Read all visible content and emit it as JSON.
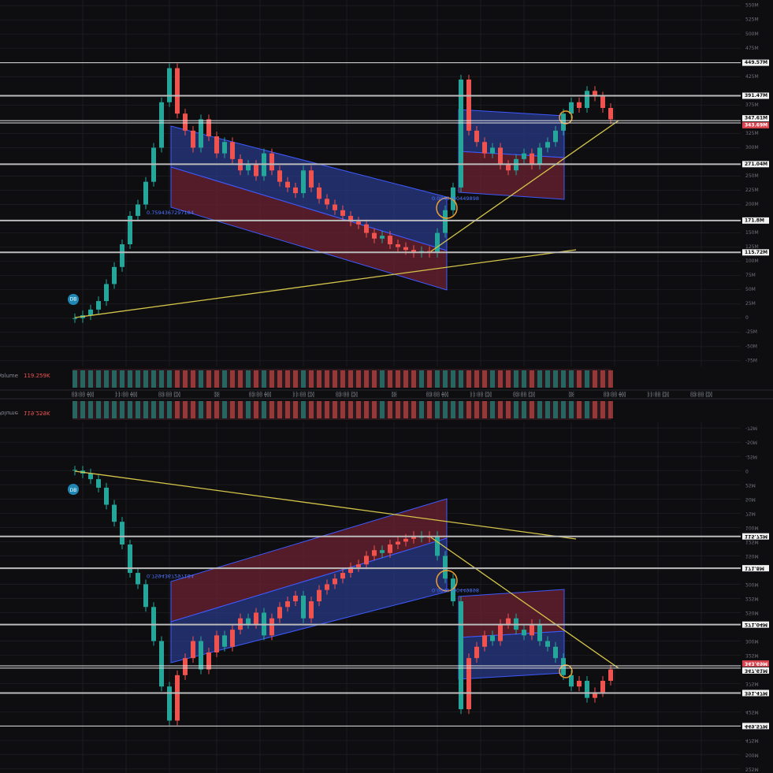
{
  "chart_data": {
    "type": "candlestick",
    "volume_label": "Volume",
    "volume_value": "119.259K",
    "closes": [
      0,
      5,
      15,
      30,
      60,
      90,
      130,
      180,
      200,
      240,
      300,
      380,
      440,
      360,
      330,
      300,
      350,
      320,
      290,
      310,
      280,
      260,
      270,
      250,
      290,
      260,
      240,
      230,
      220,
      260,
      230,
      210,
      200,
      190,
      180,
      170,
      165,
      150,
      140,
      145,
      130,
      125,
      120,
      115,
      118,
      115,
      150,
      190,
      230,
      420,
      330,
      310,
      290,
      300,
      270,
      260,
      280,
      290,
      270,
      300,
      310,
      330,
      360,
      380,
      370,
      400,
      390,
      370,
      350
    ],
    "xlim": [
      -9.5,
      84.5
    ],
    "xticks": [
      {
        "value": 1,
        "label": "09:00 AM"
      },
      {
        "value": 6.5,
        "label": "11:00 AM"
      },
      {
        "value": 12,
        "label": "09:00 PM"
      },
      {
        "value": 18,
        "label": "3K"
      },
      {
        "value": 23.5,
        "label": "09:00 AM"
      },
      {
        "value": 29,
        "label": "11:00 PM"
      },
      {
        "value": 34.5,
        "label": "09:00 PM"
      },
      {
        "value": 40.5,
        "label": "3K"
      },
      {
        "value": 46,
        "label": "09:00 AM"
      },
      {
        "value": 51.5,
        "label": "11:00 PM"
      },
      {
        "value": 57,
        "label": "09:00 PM"
      },
      {
        "value": 63,
        "label": "3K"
      },
      {
        "value": 68.5,
        "label": "09:00 AM"
      },
      {
        "value": 74,
        "label": "11:00 PM"
      },
      {
        "value": 79.5,
        "label": "09:00 PM"
      }
    ],
    "ylim": [
      -85,
      560
    ],
    "yticks": [
      {
        "value": 550,
        "label": "550M"
      },
      {
        "value": 525,
        "label": "525M"
      },
      {
        "value": 500,
        "label": "500M"
      },
      {
        "value": 475,
        "label": "475M"
      },
      {
        "value": 425,
        "label": "425M"
      },
      {
        "value": 375,
        "label": "375M"
      },
      {
        "value": 325,
        "label": "325M"
      },
      {
        "value": 300,
        "label": "300M"
      },
      {
        "value": 250,
        "label": "250M"
      },
      {
        "value": 225,
        "label": "225M"
      },
      {
        "value": 200,
        "label": "200M"
      },
      {
        "value": 150,
        "label": "150M"
      },
      {
        "value": 125,
        "label": "125M"
      },
      {
        "value": 100,
        "label": "100M"
      },
      {
        "value": 75,
        "label": "75M"
      },
      {
        "value": 50,
        "label": "50M"
      },
      {
        "value": 25,
        "label": "25M"
      },
      0,
      {
        "value": -25,
        "label": "-25M"
      },
      {
        "value": -50,
        "label": "-50M"
      },
      {
        "value": -75,
        "label": "-75M"
      }
    ],
    "levels": [
      {
        "value": 449.57,
        "label": "449.57M"
      },
      {
        "value": 391.47,
        "label": "391.47M"
      },
      {
        "value": 347.61,
        "label": "347.61M"
      },
      {
        "value": 343.69,
        "label": "343.69M"
      },
      {
        "value": 271.04,
        "label": "271.04M"
      },
      {
        "value": 171.8,
        "label": "171.8M"
      },
      {
        "value": 115.72,
        "label": "115.72M"
      }
    ],
    "annotations": [
      "0.7594367297184",
      "0.0949190449898",
      "DB"
    ],
    "up_color": "#26a69a",
    "down_color": "#ef5350"
  }
}
